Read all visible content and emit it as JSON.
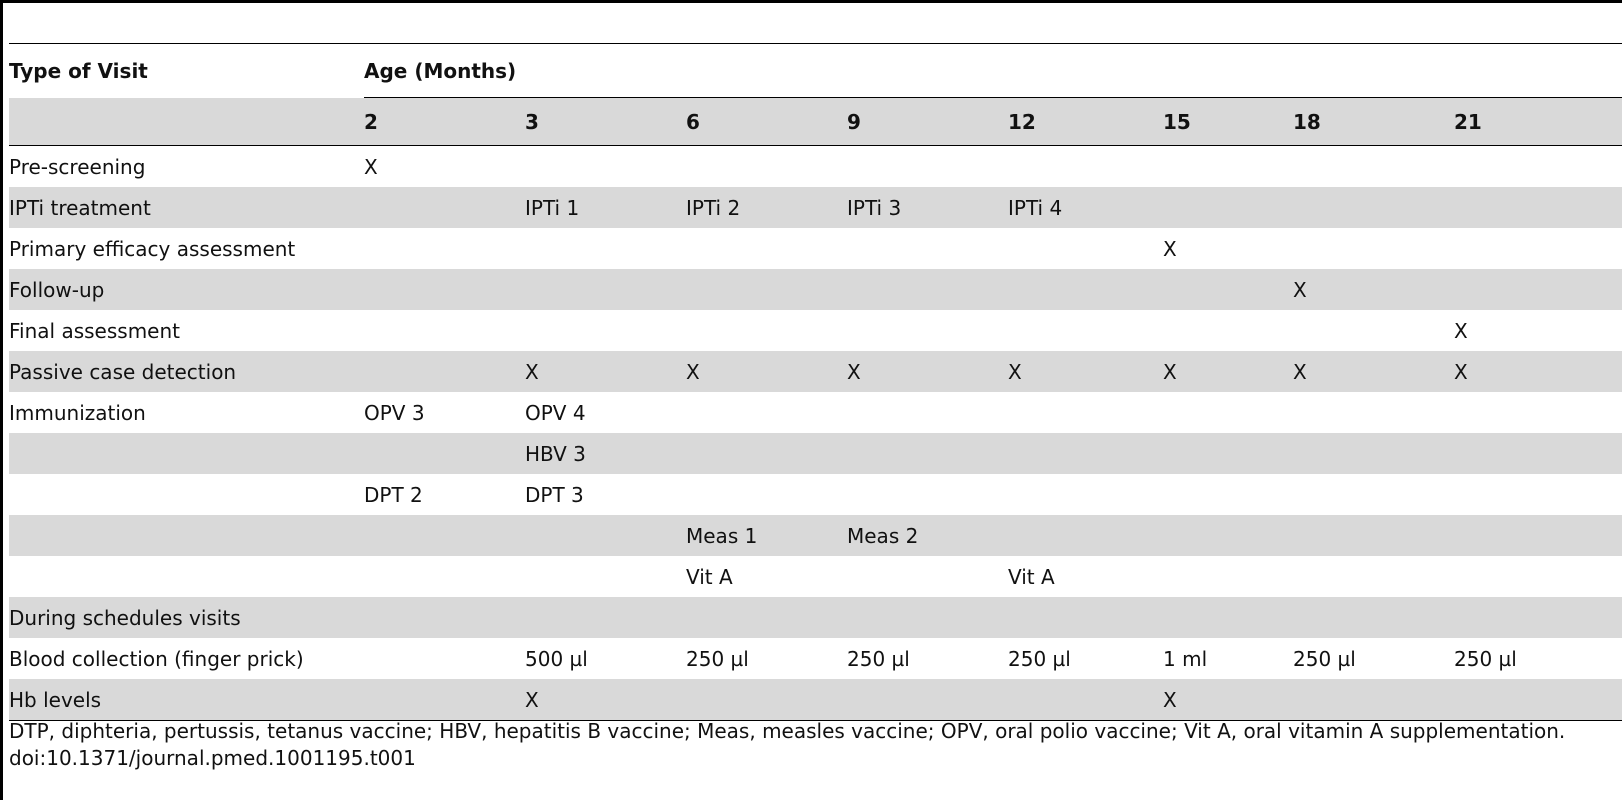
{
  "table": {
    "header": {
      "type_of_visit": "Type of Visit",
      "age_months": "Age (Months)",
      "ages": [
        "2",
        "3",
        "6",
        "9",
        "12",
        "15",
        "18",
        "21"
      ]
    },
    "rows": [
      {
        "label": "Pre-screening",
        "cells": [
          "X",
          "",
          "",
          "",
          "",
          "",
          "",
          ""
        ],
        "shaded": false
      },
      {
        "label": "IPTi treatment",
        "cells": [
          "",
          "IPTi 1",
          "IPTi 2",
          "IPTi 3",
          "IPTi 4",
          "",
          "",
          ""
        ],
        "shaded": true
      },
      {
        "label": "Primary efficacy assessment",
        "cells": [
          "",
          "",
          "",
          "",
          "",
          "X",
          "",
          ""
        ],
        "shaded": false
      },
      {
        "label": "Follow-up",
        "cells": [
          "",
          "",
          "",
          "",
          "",
          "",
          "X",
          ""
        ],
        "shaded": true
      },
      {
        "label": "Final assessment",
        "cells": [
          "",
          "",
          "",
          "",
          "",
          "",
          "",
          "X"
        ],
        "shaded": false
      },
      {
        "label": "Passive case detection",
        "cells": [
          "",
          "X",
          "X",
          "X",
          "X",
          "X",
          "X",
          "X"
        ],
        "shaded": true
      },
      {
        "label": "Immunization",
        "cells": [
          "OPV 3",
          "OPV 4",
          "",
          "",
          "",
          "",
          "",
          ""
        ],
        "shaded": false
      },
      {
        "label": "",
        "cells": [
          "",
          "HBV 3",
          "",
          "",
          "",
          "",
          "",
          ""
        ],
        "shaded": true
      },
      {
        "label": "",
        "cells": [
          "DPT 2",
          "DPT 3",
          "",
          "",
          "",
          "",
          "",
          ""
        ],
        "shaded": false
      },
      {
        "label": "",
        "cells": [
          "",
          "",
          "Meas 1",
          "Meas 2",
          "",
          "",
          "",
          ""
        ],
        "shaded": true
      },
      {
        "label": "",
        "cells": [
          "",
          "",
          "Vit A",
          "",
          "Vit A",
          "",
          "",
          ""
        ],
        "shaded": false
      },
      {
        "label": "During schedules visits",
        "cells": [
          "",
          "",
          "",
          "",
          "",
          "",
          "",
          ""
        ],
        "shaded": true
      },
      {
        "label": "Blood collection (finger prick)",
        "cells": [
          "",
          "500 µl",
          "250 µl",
          "250 µl",
          "250 µl",
          "1 ml",
          "250 µl",
          "250 µl"
        ],
        "shaded": false
      },
      {
        "label": "Hb levels",
        "cells": [
          "",
          "X",
          "",
          "",
          "",
          "X",
          "",
          ""
        ],
        "shaded": true
      }
    ]
  },
  "footnote": {
    "abbreviations": "DTP, diphteria, pertussis, tetanus vaccine; HBV, hepatitis B vaccine; Meas, measles vaccine; OPV, oral polio vaccine; Vit A, oral vitamin A supplementation.",
    "doi": "doi:10.1371/journal.pmed.1001195.t001"
  },
  "colors": {
    "row_shade": "#d9d9d9",
    "rule": "#000000",
    "text": "#111111"
  }
}
